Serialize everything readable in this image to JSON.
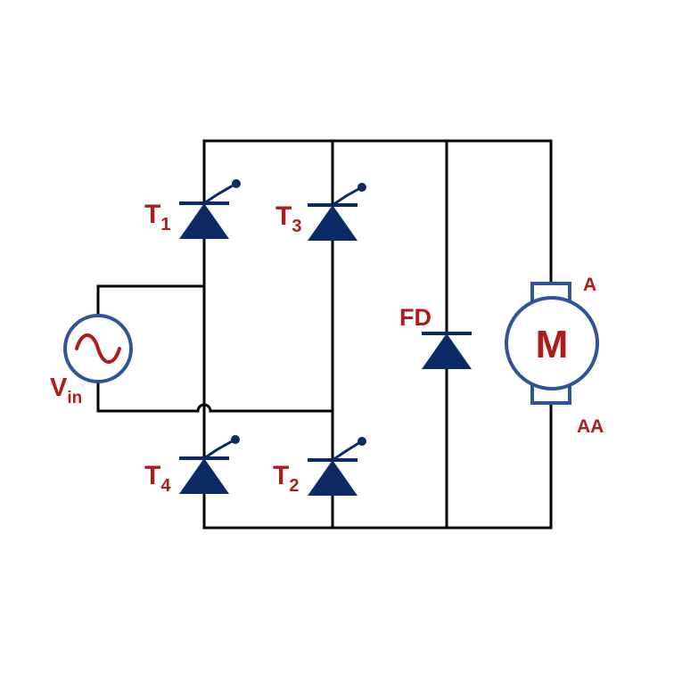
{
  "colors": {
    "wire": "#000000",
    "device": "#0c2a66",
    "label": "#b01c1c",
    "source_ring": "#2e5597",
    "motor_fill": "#ffffff"
  },
  "labels": {
    "t1_main": "T",
    "t1_sub": "1",
    "t3_main": "T",
    "t3_sub": "3",
    "t4_main": "T",
    "t4_sub": "4",
    "t2_main": "T",
    "t2_sub": "2",
    "fd": "FD",
    "vin_main": "V",
    "vin_sub": "in",
    "motor": "M",
    "terminal_a": "A",
    "terminal_aa": "AA"
  },
  "icons": {
    "thyristor": "thyristor-icon",
    "diode": "diode-icon",
    "ac_source": "ac-source-icon",
    "motor": "dc-motor-icon"
  }
}
